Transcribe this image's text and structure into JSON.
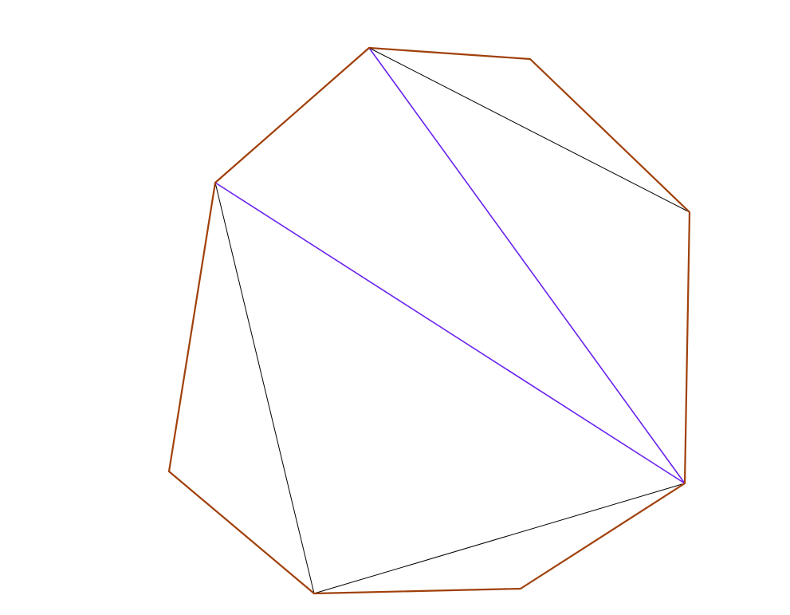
{
  "colors": {
    "background": "#ffffff",
    "polygon_outline": "#a0400a",
    "diagonals": "#000000",
    "shaded_triangle": "#6a22ee"
  },
  "figure": {
    "polygon_sides": 8,
    "diagonals_drawn": 5,
    "shaded_triangle_fill": "diagonal-hatch"
  }
}
